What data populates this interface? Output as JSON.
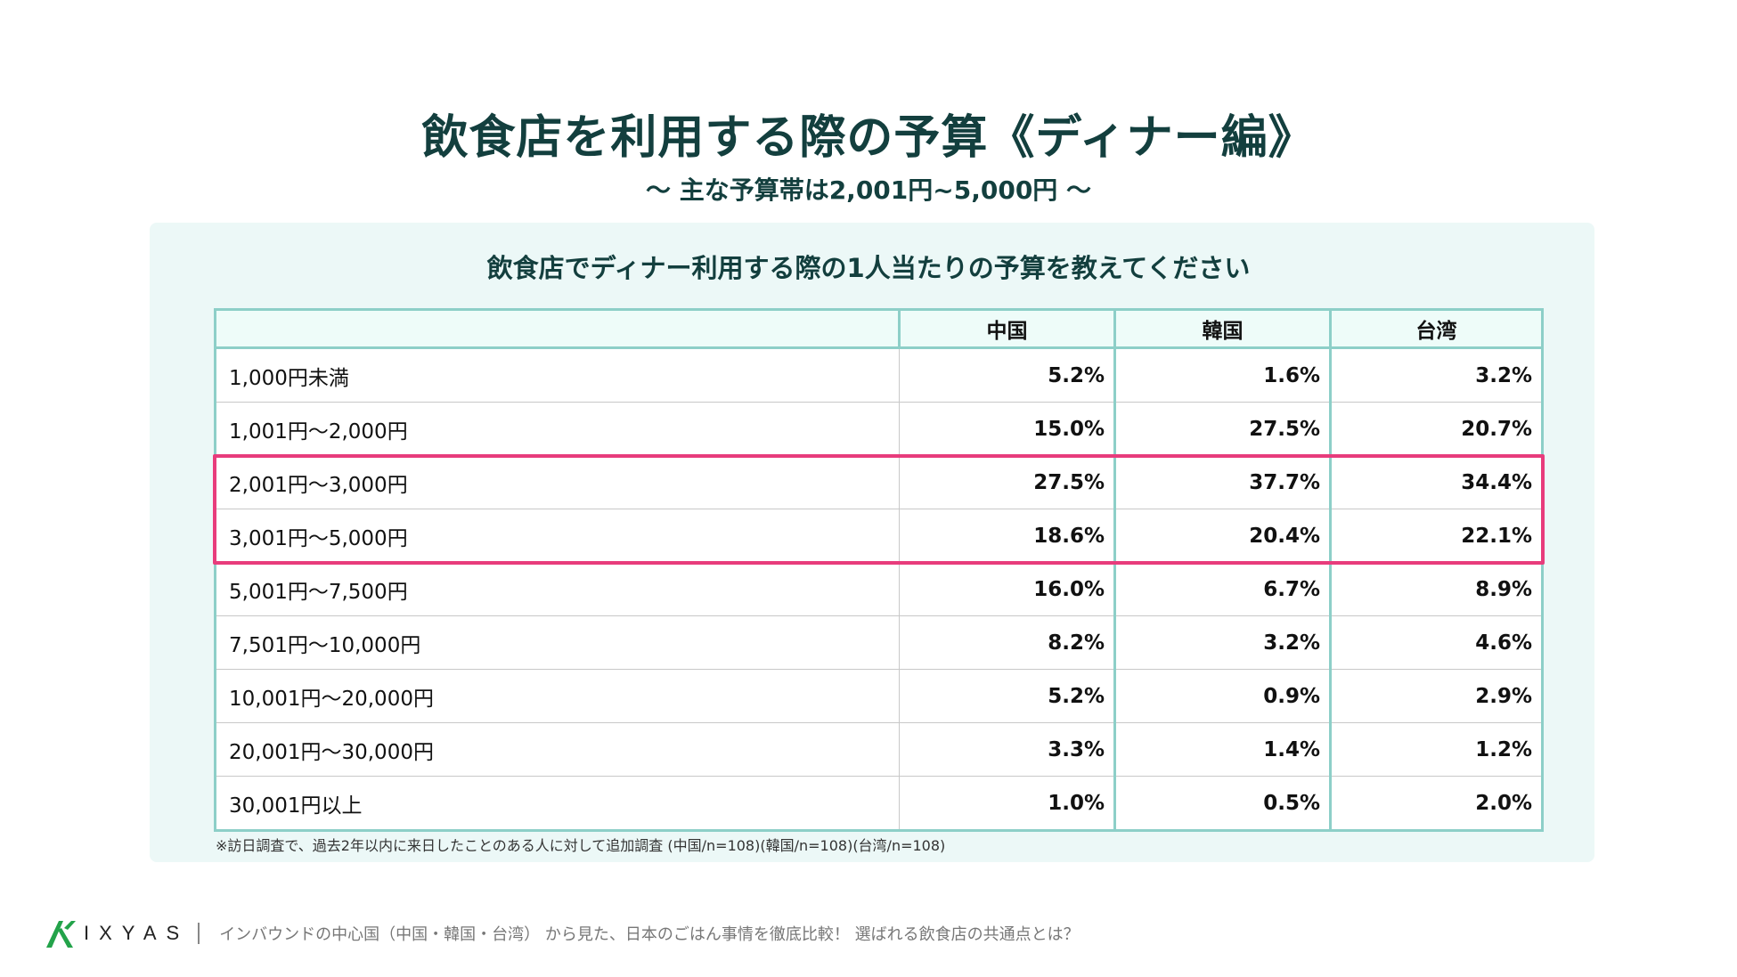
{
  "title": "飲食店を利用する際の予算《ディナー編》",
  "subtitle": "〜 主な予算帯は2,001円~5,000円 〜",
  "chart_data": {
    "type": "table",
    "title": "飲食店でディナー利用する際の1人当たりの予算を教えてください",
    "columns": [
      "",
      "中国",
      "韓国",
      "台湾"
    ],
    "rows": [
      {
        "label": "1,000円未満",
        "values": [
          "5.2%",
          "1.6%",
          "3.2%"
        ]
      },
      {
        "label": "1,001円〜2,000円",
        "values": [
          "15.0%",
          "27.5%",
          "20.7%"
        ]
      },
      {
        "label": "2,001円〜3,000円",
        "values": [
          "27.5%",
          "37.7%",
          "34.4%"
        ]
      },
      {
        "label": "3,001円〜5,000円",
        "values": [
          "18.6%",
          "20.4%",
          "22.1%"
        ]
      },
      {
        "label": "5,001円〜7,500円",
        "values": [
          "16.0%",
          "6.7%",
          "8.9%"
        ]
      },
      {
        "label": "7,501円〜10,000円",
        "values": [
          "8.2%",
          "3.2%",
          "4.6%"
        ]
      },
      {
        "label": "10,001円〜20,000円",
        "values": [
          "5.2%",
          "0.9%",
          "2.9%"
        ]
      },
      {
        "label": "20,001円〜30,000円",
        "values": [
          "3.3%",
          "1.4%",
          "1.2%"
        ]
      },
      {
        "label": "30,001円以上",
        "values": [
          "1.0%",
          "0.5%",
          "2.0%"
        ]
      }
    ],
    "highlighted_rows": [
      "2,001円〜3,000円",
      "3,001円〜5,000円"
    ]
  },
  "footnote": "※訪日調査で、過去2年以内に来日したことのある人に対して追加調査 (中国/n=108)(韓国/n=108)(台湾/n=108)",
  "footer": {
    "logo_text": "IXYAS",
    "logo_icon": "ixyas-logo-icon",
    "text": "インバウンドの中心国（中国・韓国・台湾） から見た、日本のごはん事情を徹底比較！ 選ばれる飲食店の共通点とは？"
  },
  "colors": {
    "title": "#133f3e",
    "panel_bg": "#ecf8f7",
    "table_border": "#8dcfc8",
    "header_bg": "#eefcf9",
    "highlight": "#e83c7c",
    "logo_green": "#23a34a"
  }
}
